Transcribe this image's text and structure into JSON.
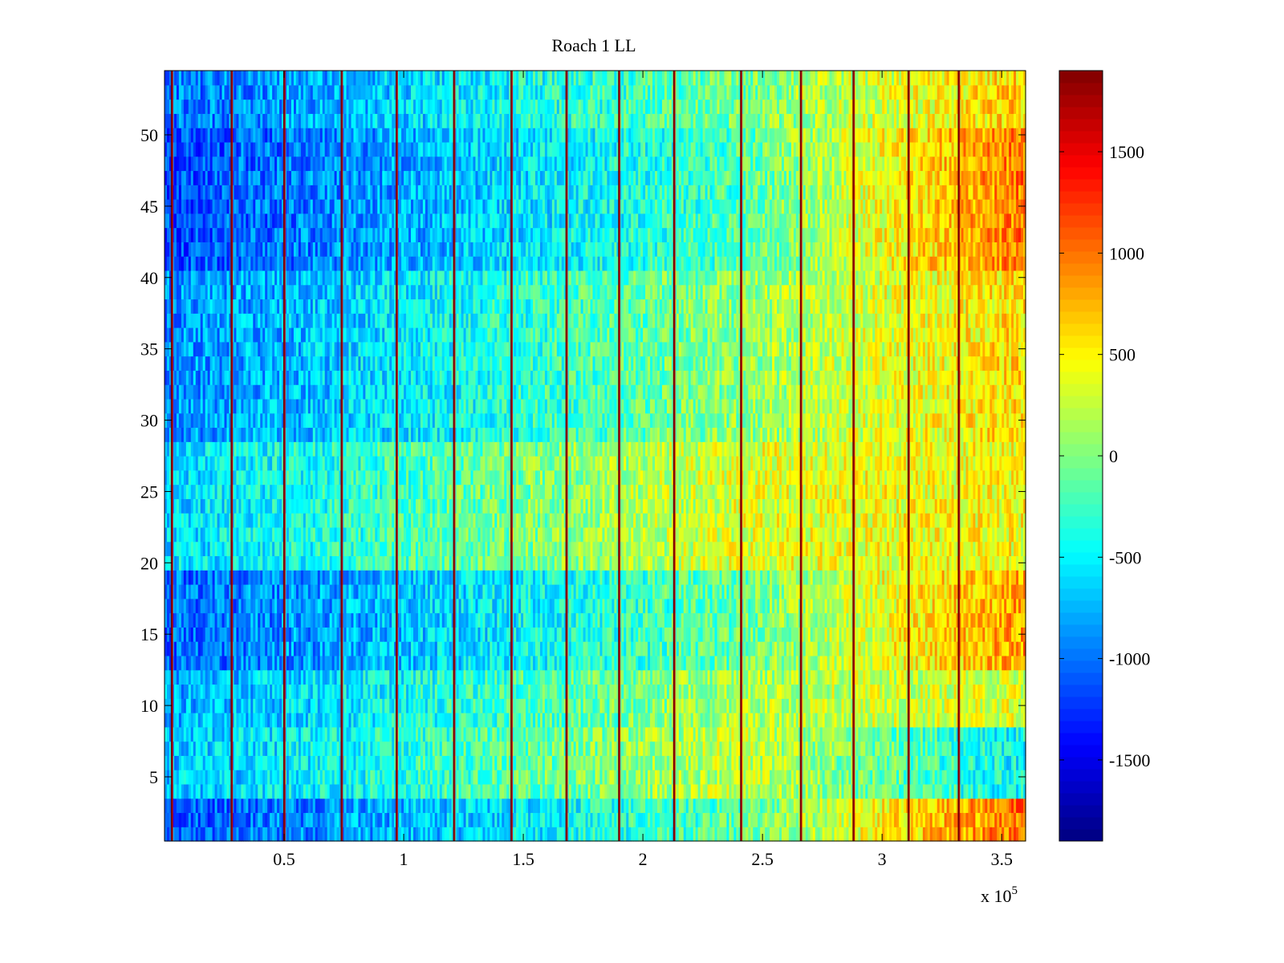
{
  "chart_data": {
    "type": "heatmap",
    "title": "Roach 1 LL",
    "xlabel": "",
    "ylabel": "",
    "x_multiplier_label": "x 10",
    "x_multiplier_exponent": "5",
    "xlim": [
      0,
      360000
    ],
    "ylim": [
      0.5,
      54.5
    ],
    "rows": 54,
    "x_ticks": [
      50000,
      100000,
      150000,
      200000,
      250000,
      300000,
      350000
    ],
    "x_tick_labels": [
      "0.5",
      "1",
      "1.5",
      "2",
      "2.5",
      "3",
      "3.5"
    ],
    "y_ticks": [
      5,
      10,
      15,
      20,
      25,
      30,
      35,
      40,
      45,
      50
    ],
    "y_tick_labels": [
      "5",
      "10",
      "15",
      "20",
      "25",
      "30",
      "35",
      "40",
      "45",
      "50"
    ],
    "colormap": "jet",
    "clim": [
      -1900,
      1900
    ],
    "colorbar_ticks": [
      -1500,
      -1000,
      -500,
      0,
      500,
      1000,
      1500
    ],
    "colorbar_tick_labels": [
      "-1500",
      "-1000",
      "-500",
      "0",
      "500",
      "1000",
      "1500"
    ],
    "vertical_artifact_lines_x": [
      3000,
      28000,
      50000,
      74000,
      97000,
      121000,
      145000,
      168000,
      190000,
      213000,
      241000,
      266000,
      288000,
      311000,
      332000
    ],
    "trend_breakpoints_x": [
      0,
      60000,
      120000,
      180000,
      240000,
      300000,
      360000
    ],
    "trend_breakpoints_mean": [
      -850,
      -650,
      -400,
      -150,
      100,
      300,
      450
    ],
    "row_groups": [
      {
        "rows": [
          1,
          3
        ],
        "mean_offset": -250,
        "late_offset": 600
      },
      {
        "rows": [
          4,
          8
        ],
        "mean_offset": 150,
        "late_offset": -950
      },
      {
        "rows": [
          9,
          12
        ],
        "mean_offset": 50,
        "late_offset": -100
      },
      {
        "rows": [
          13,
          19
        ],
        "mean_offset": -200,
        "late_offset": 400
      },
      {
        "rows": [
          20,
          28
        ],
        "mean_offset": 250,
        "late_offset": 0
      },
      {
        "rows": [
          29,
          40
        ],
        "mean_offset": -50,
        "late_offset": 150
      },
      {
        "rows": [
          41,
          50
        ],
        "mean_offset": -300,
        "late_offset": 550
      },
      {
        "rows": [
          51,
          54
        ],
        "mean_offset": -150,
        "late_offset": 200
      }
    ]
  }
}
